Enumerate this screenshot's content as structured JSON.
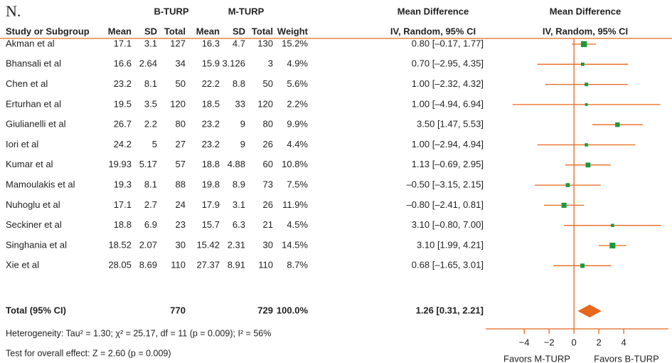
{
  "chart_data": {
    "type": "forest",
    "panel_label": "N.",
    "group_headers": [
      "B-TURP",
      "M-TURP",
      "Mean Difference",
      "Mean Difference"
    ],
    "columns": [
      "Study or Subgroup",
      "Mean",
      "SD",
      "Total",
      "Mean",
      "SD",
      "Total",
      "Weight",
      "IV, Random, 95% CI",
      "IV, Random, 95% CI"
    ],
    "studies": [
      {
        "name": "Akman et al",
        "b_mean": 17.1,
        "b_sd": 3.1,
        "b_total": 127,
        "m_mean": 16.3,
        "m_sd": 4.7,
        "m_total": 130,
        "weight": 15.2,
        "weight_label": "15.2%",
        "md": 0.8,
        "ci": [
          -0.17,
          1.77
        ],
        "md_label": "0.80 [–0.17, 1.77]"
      },
      {
        "name": "Bhansali et al",
        "b_mean": 16.6,
        "b_sd": 2.64,
        "b_total": 34,
        "m_mean": 15.9,
        "m_sd": 3.126,
        "m_total": 3,
        "weight": 4.9,
        "weight_label": "4.9%",
        "md": 0.7,
        "ci": [
          -2.95,
          4.35
        ],
        "md_label": "0.70 [–2.95, 4.35]"
      },
      {
        "name": "Chen et al",
        "b_mean": 23.2,
        "b_sd": 8.1,
        "b_total": 50,
        "m_mean": 22.2,
        "m_sd": 8.8,
        "m_total": 50,
        "weight": 5.6,
        "weight_label": "5.6%",
        "md": 1,
        "ci": [
          -2.32,
          4.32
        ],
        "md_label": "1.00 [–2.32, 4.32]"
      },
      {
        "name": "Erturhan et al",
        "b_mean": 19.5,
        "b_sd": 3.5,
        "b_total": 120,
        "m_mean": 18.5,
        "m_sd": 33,
        "m_total": 120,
        "weight": 2.2,
        "weight_label": "2.2%",
        "md": 1,
        "ci": [
          -4.94,
          6.94
        ],
        "md_label": "1.00 [–4.94, 6.94]"
      },
      {
        "name": "Giulianelli et al",
        "b_mean": 26.7,
        "b_sd": 2.2,
        "b_total": 80,
        "m_mean": 23.2,
        "m_sd": 9,
        "m_total": 80,
        "weight": 9.9,
        "weight_label": "9.9%",
        "md": 3.5,
        "ci": [
          1.47,
          5.53
        ],
        "md_label": "3.50 [1.47, 5.53]"
      },
      {
        "name": "Iori et al",
        "b_mean": 24.2,
        "b_sd": 5,
        "b_total": 27,
        "m_mean": 23.2,
        "m_sd": 9,
        "m_total": 26,
        "weight": 4.4,
        "weight_label": "4.4%",
        "md": 1,
        "ci": [
          -2.94,
          4.94
        ],
        "md_label": "1.00 [–2.94, 4.94]"
      },
      {
        "name": "Kumar et al",
        "b_mean": 19.93,
        "b_sd": 5.17,
        "b_total": 57,
        "m_mean": 18.8,
        "m_sd": 4.88,
        "m_total": 60,
        "weight": 10.8,
        "weight_label": "10.8%",
        "md": 1.13,
        "ci": [
          -0.69,
          2.95
        ],
        "md_label": "1.13 [–0.69, 2.95]"
      },
      {
        "name": "Mamoulakis et al",
        "b_mean": 19.3,
        "b_sd": 8.1,
        "b_total": 88,
        "m_mean": 19.8,
        "m_sd": 8.9,
        "m_total": 73,
        "weight": 7.5,
        "weight_label": "7.5%",
        "md": -0.5,
        "ci": [
          -3.15,
          2.15
        ],
        "md_label": "–0.50 [–3.15, 2.15]"
      },
      {
        "name": "Nuhoglu et al",
        "b_mean": 17.1,
        "b_sd": 2.7,
        "b_total": 24,
        "m_mean": 17.9,
        "m_sd": 3.1,
        "m_total": 26,
        "weight": 11.9,
        "weight_label": "11.9%",
        "md": -0.8,
        "ci": [
          -2.41,
          0.81
        ],
        "md_label": "–0.80 [–2.41, 0.81]"
      },
      {
        "name": "Seckiner et al",
        "b_mean": 18.8,
        "b_sd": 6.9,
        "b_total": 23,
        "m_mean": 15.7,
        "m_sd": 6.3,
        "m_total": 21,
        "weight": 4.5,
        "weight_label": "4.5%",
        "md": 3.1,
        "ci": [
          -0.8,
          7
        ],
        "md_label": "3.10 [–0.80, 7.00]"
      },
      {
        "name": "Singhania et al",
        "b_mean": 18.52,
        "b_sd": 2.07,
        "b_total": 30,
        "m_mean": 15.42,
        "m_sd": 2.31,
        "m_total": 30,
        "weight": 14.5,
        "weight_label": "14.5%",
        "md": 3.1,
        "ci": [
          1.99,
          4.21
        ],
        "md_label": "3.10 [1.99, 4.21]"
      },
      {
        "name": "Xie et al",
        "b_mean": 28.05,
        "b_sd": 8.69,
        "b_total": 110,
        "m_mean": 27.37,
        "m_sd": 8.91,
        "m_total": 110,
        "weight": 8.7,
        "weight_label": "8.7%",
        "md": 0.68,
        "ci": [
          -1.65,
          3.01
        ],
        "md_label": "0.68 [–1.65, 3.01]"
      }
    ],
    "total": {
      "name": "Total (95% CI)",
      "b_total": 770,
      "m_total": 729,
      "weight": 100,
      "weight_label": "100.0%",
      "md": 1.26,
      "ci": [
        0.31,
        2.21
      ],
      "md_label": "1.26 [0.31, 2.21]"
    },
    "heterogeneity": "Heterogeneity: Tau² = 1.30; χ² = 25.17, df = 11 (p = 0.009); I² = 56%",
    "overall_effect": "Test for overall effect: Z = 2.60 (p = 0.009)",
    "xlim": [
      -7.1,
      7.6
    ],
    "xticks": [
      {
        "value": -4,
        "label": "−4"
      },
      {
        "value": -2,
        "label": "−2"
      },
      0,
      2,
      4
    ],
    "x_labels": [
      "Favors M-TURP",
      "Favors B-TURP"
    ],
    "line_color": "#e8671d",
    "marker_color": "#1a9a3c"
  }
}
